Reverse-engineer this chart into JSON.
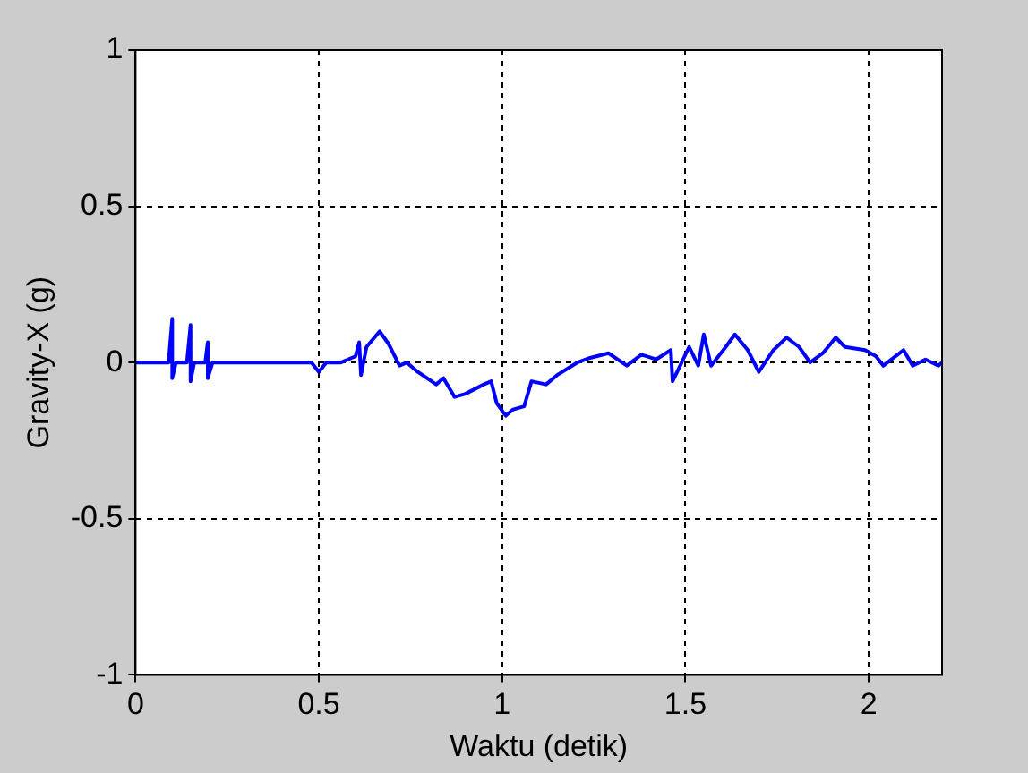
{
  "chart_data": {
    "type": "line",
    "xlabel": "Waktu (detik)",
    "ylabel": "Gravity-X (g)",
    "xlim": [
      0,
      2.2
    ],
    "ylim": [
      -1,
      1
    ],
    "xticks": [
      0,
      0.5,
      1,
      1.5,
      2
    ],
    "yticks": [
      -1,
      -0.5,
      0,
      0.5,
      1
    ],
    "grid": true,
    "legend": false,
    "marker": "none",
    "line_style": "solid",
    "series": [
      {
        "color": "#0000ff",
        "x": [
          0,
          0.05,
          0.09,
          0.1,
          0.1,
          0.11,
          0.14,
          0.15,
          0.15,
          0.16,
          0.19,
          0.197,
          0.197,
          0.21,
          0.3,
          0.4,
          0.48,
          0.5,
          0.52,
          0.56,
          0.6,
          0.61,
          0.615,
          0.63,
          0.666,
          0.69,
          0.72,
          0.74,
          0.77,
          0.82,
          0.84,
          0.87,
          0.9,
          0.95,
          0.97,
          0.985,
          1.01,
          1.03,
          1.06,
          1.08,
          1.12,
          1.15,
          1.205,
          1.24,
          1.29,
          1.34,
          1.38,
          1.42,
          1.46,
          1.465,
          1.51,
          1.535,
          1.55,
          1.57,
          1.61,
          1.635,
          1.67,
          1.7,
          1.74,
          1.776,
          1.81,
          1.84,
          1.875,
          1.91,
          1.935,
          1.99,
          2.02,
          2.04,
          2.095,
          2.12,
          2.155,
          2.19,
          2.2
        ],
        "values": [
          0,
          0,
          0,
          0.14,
          -0.05,
          0,
          0,
          0.12,
          -0.06,
          0,
          0,
          0.065,
          -0.05,
          0,
          0,
          0,
          0,
          -0.03,
          0,
          0,
          0.02,
          0.065,
          -0.04,
          0.05,
          0.1,
          0.06,
          -0.01,
          0,
          -0.03,
          -0.07,
          -0.05,
          -0.11,
          -0.1,
          -0.07,
          -0.06,
          -0.13,
          -0.17,
          -0.15,
          -0.14,
          -0.06,
          -0.07,
          -0.04,
          0,
          0.015,
          0.03,
          -0.01,
          0.025,
          0.01,
          0.04,
          -0.06,
          0.05,
          -0.01,
          0.09,
          -0.01,
          0.05,
          0.09,
          0.04,
          -0.03,
          0.04,
          0.08,
          0.05,
          0,
          0.03,
          0.08,
          0.05,
          0.04,
          0.02,
          -0.01,
          0.04,
          -0.01,
          0.01,
          -0.01,
          0
        ]
      }
    ]
  }
}
